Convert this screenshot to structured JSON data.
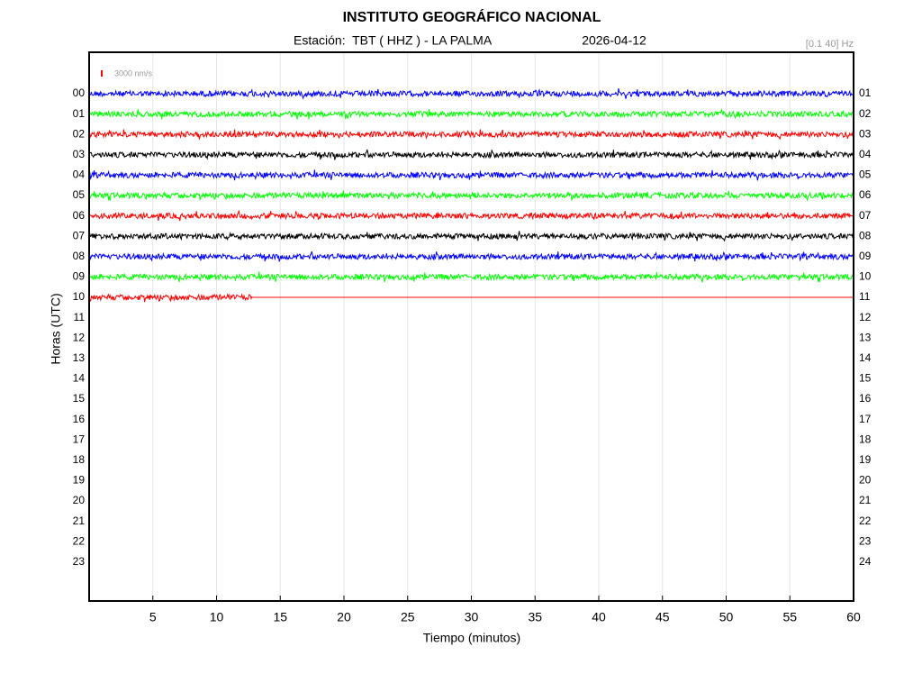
{
  "chart_data": {
    "type": "helicorder",
    "title": "INSTITUTO GEOGRÁFICO NACIONAL",
    "station": "Estación:  TBT ( HHZ ) - LA PALMA",
    "date": "2026-04-12",
    "filter": "[0.1 40] Hz",
    "scale_label": "3000 nm/s",
    "scale_color": "#ff0000",
    "xlabel": "Tiempo (minutos)",
    "ylabel": "Horas (UTC)",
    "xlim": [
      0,
      60
    ],
    "xticks": [
      5,
      10,
      15,
      20,
      25,
      30,
      35,
      40,
      45,
      50,
      55,
      60
    ],
    "grid": true,
    "categories": [
      "00",
      "01",
      "02",
      "03",
      "04",
      "05",
      "06",
      "07",
      "08",
      "09",
      "10",
      "11",
      "12",
      "13",
      "14",
      "15",
      "16",
      "17",
      "18",
      "19",
      "20",
      "21",
      "22",
      "23"
    ],
    "right_categories": [
      "01",
      "02",
      "03",
      "04",
      "05",
      "06",
      "07",
      "08",
      "09",
      "10",
      "11",
      "12",
      "13",
      "14",
      "15",
      "16",
      "17",
      "18",
      "19",
      "20",
      "21",
      "22",
      "23",
      "24"
    ],
    "traces": [
      {
        "color": "#0000ff",
        "end": 60
      },
      {
        "color": "#00ff00",
        "end": 60
      },
      {
        "color": "#ff0000",
        "end": 60
      },
      {
        "color": "#000000",
        "end": 60
      },
      {
        "color": "#0000ff",
        "end": 60
      },
      {
        "color": "#00ff00",
        "end": 60
      },
      {
        "color": "#ff0000",
        "end": 60
      },
      {
        "color": "#000000",
        "end": 60
      },
      {
        "color": "#0000ff",
        "end": 60
      },
      {
        "color": "#00ff00",
        "end": 60
      },
      {
        "color": "#ff0000",
        "end": 12.8
      }
    ]
  }
}
